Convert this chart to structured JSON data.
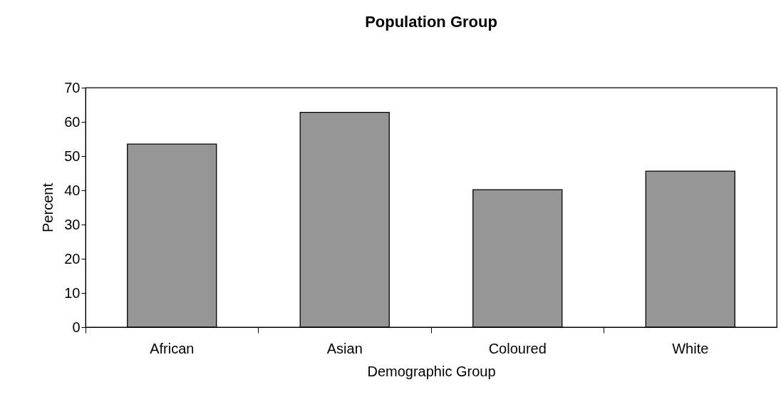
{
  "chart_data": {
    "type": "bar",
    "title": "Population Group",
    "xlabel": "Demographic Group",
    "ylabel": "Percent",
    "categories": [
      "African",
      "Asian",
      "Coloured",
      "White"
    ],
    "values": [
      53.5,
      62.8,
      40.2,
      45.6
    ],
    "color": "#969696",
    "ylim": [
      0,
      70
    ],
    "yticks": [
      0,
      10,
      20,
      30,
      40,
      50,
      60,
      70
    ],
    "grid": false
  }
}
